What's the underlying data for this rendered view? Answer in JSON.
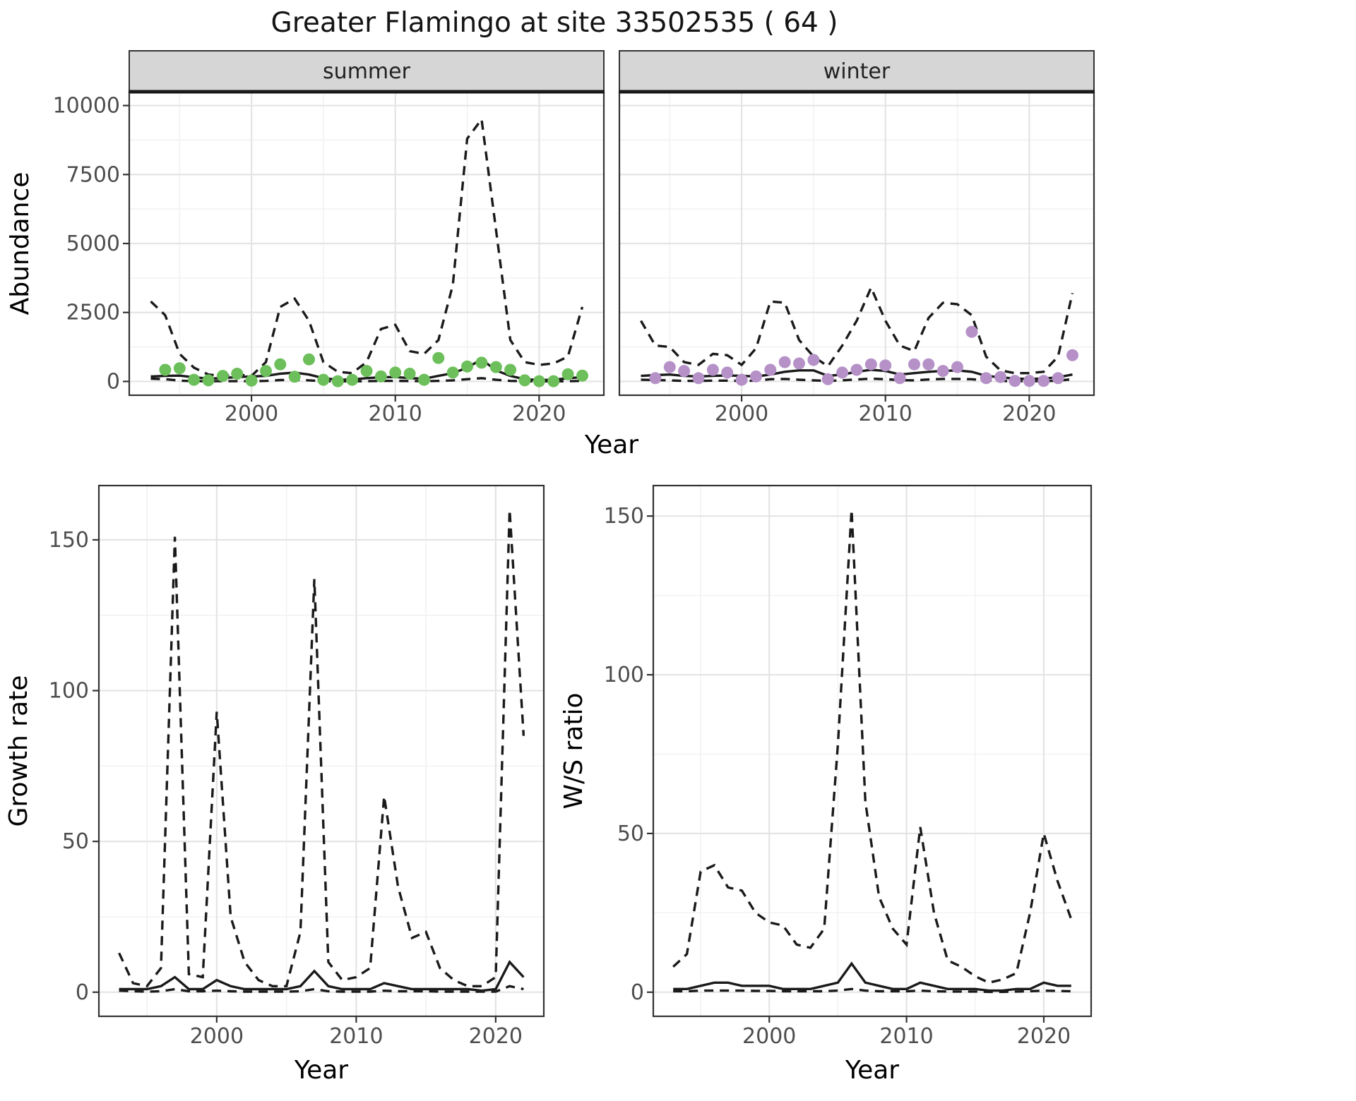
{
  "title": "Greater Flamingo at site 33502535 ( 64 )",
  "colors": {
    "summer_point": "#6cbf5a",
    "winter_point": "#b591c8",
    "line": "#1a1a1a",
    "strip_bg": "#d6d6d6",
    "panel_border": "#333333",
    "grid_major": "#e4e4e4",
    "grid_minor": "#f2f2f2",
    "tick_text": "#4d4d4d",
    "axis_title": "#000000"
  },
  "chart_data": [
    {
      "id": "abundance",
      "type": "line",
      "title": "Greater Flamingo at site 33502535 ( 64 )",
      "xlabel": "Year",
      "ylabel": "Abundance",
      "xlim": [
        1993,
        2023
      ],
      "ylim": [
        0,
        10000
      ],
      "xticks": [
        2000,
        2010,
        2020
      ],
      "yticks": [
        0,
        2500,
        5000,
        7500,
        10000
      ],
      "x_minor": [
        1995,
        2005,
        2015
      ],
      "y_minor": [
        1250,
        3750,
        6250,
        8750
      ],
      "legend": "none",
      "grid": "on",
      "facets": [
        {
          "label": "summer",
          "point_color": "#6cbf5a",
          "years": [
            1993,
            1994,
            1995,
            1996,
            1997,
            1998,
            1999,
            2000,
            2001,
            2002,
            2003,
            2004,
            2005,
            2006,
            2007,
            2008,
            2009,
            2010,
            2011,
            2012,
            2013,
            2014,
            2015,
            2016,
            2017,
            2018,
            2019,
            2020,
            2021,
            2022,
            2023
          ],
          "series": [
            {
              "name": "upper_ci",
              "style": "dashed",
              "values": [
                2900,
                2400,
                1000,
                500,
                250,
                200,
                250,
                200,
                700,
                2700,
                3000,
                2200,
                700,
                350,
                300,
                700,
                1900,
                2050,
                1100,
                1000,
                1500,
                3500,
                8800,
                9500,
                5500,
                1500,
                700,
                600,
                650,
                900,
                2700
              ]
            },
            {
              "name": "fit",
              "style": "solid",
              "values": [
                180,
                200,
                210,
                150,
                100,
                120,
                160,
                180,
                200,
                280,
                320,
                250,
                120,
                60,
                70,
                120,
                150,
                160,
                120,
                100,
                200,
                300,
                500,
                800,
                400,
                200,
                80,
                50,
                60,
                120,
                150
              ]
            },
            {
              "name": "lower_ci",
              "style": "dashed",
              "values": [
                100,
                80,
                30,
                10,
                10,
                10,
                10,
                10,
                20,
                50,
                60,
                40,
                10,
                5,
                5,
                10,
                20,
                20,
                15,
                10,
                20,
                40,
                80,
                120,
                60,
                20,
                5,
                5,
                5,
                10,
                20
              ]
            }
          ],
          "points": {
            "name": "observed_abundance",
            "x": [
              1994,
              1995,
              1996,
              1997,
              1998,
              1999,
              2000,
              2001,
              2002,
              2003,
              2004,
              2005,
              2006,
              2007,
              2008,
              2009,
              2010,
              2011,
              2012,
              2013,
              2014,
              2015,
              2016,
              2017,
              2018,
              2019,
              2020,
              2021,
              2022,
              2023
            ],
            "y": [
              420,
              480,
              60,
              40,
              200,
              280,
              30,
              380,
              620,
              170,
              800,
              60,
              10,
              60,
              380,
              180,
              320,
              280,
              60,
              850,
              320,
              540,
              680,
              520,
              420,
              40,
              10,
              10,
              260,
              210
            ]
          }
        },
        {
          "label": "winter",
          "point_color": "#b591c8",
          "years": [
            1993,
            1994,
            1995,
            1996,
            1997,
            1998,
            1999,
            2000,
            2001,
            2002,
            2003,
            2004,
            2005,
            2006,
            2007,
            2008,
            2009,
            2010,
            2011,
            2012,
            2013,
            2014,
            2015,
            2016,
            2017,
            2018,
            2019,
            2020,
            2021,
            2022,
            2023
          ],
          "series": [
            {
              "name": "upper_ci",
              "style": "dashed",
              "values": [
                2200,
                1300,
                1250,
                700,
                600,
                1000,
                950,
                600,
                1200,
                2900,
                2850,
                1500,
                900,
                550,
                1300,
                2200,
                3400,
                2200,
                1300,
                1100,
                2300,
                2850,
                2800,
                2400,
                900,
                400,
                300,
                300,
                350,
                900,
                3200
              ]
            },
            {
              "name": "fit",
              "style": "solid",
              "values": [
                200,
                230,
                250,
                200,
                180,
                200,
                220,
                200,
                180,
                250,
                350,
                400,
                400,
                200,
                250,
                350,
                420,
                380,
                250,
                300,
                350,
                380,
                400,
                350,
                200,
                150,
                100,
                90,
                100,
                150,
                250
              ]
            },
            {
              "name": "lower_ci",
              "style": "dashed",
              "values": [
                60,
                50,
                40,
                20,
                20,
                30,
                30,
                20,
                30,
                80,
                90,
                60,
                40,
                20,
                40,
                70,
                100,
                80,
                50,
                40,
                70,
                90,
                90,
                80,
                40,
                20,
                10,
                10,
                10,
                30,
                80
              ]
            }
          ],
          "points": {
            "name": "observed_abundance",
            "x": [
              1994,
              1995,
              1996,
              1997,
              1998,
              1999,
              2000,
              2001,
              2002,
              2003,
              2004,
              2005,
              2006,
              2007,
              2008,
              2009,
              2010,
              2011,
              2012,
              2013,
              2014,
              2015,
              2016,
              2017,
              2018,
              2019,
              2020,
              2021,
              2022,
              2023
            ],
            "y": [
              120,
              520,
              380,
              120,
              420,
              320,
              60,
              180,
              420,
              700,
              650,
              780,
              80,
              320,
              420,
              620,
              580,
              120,
              620,
              620,
              380,
              520,
              1800,
              120,
              160,
              20,
              20,
              20,
              120,
              950
            ]
          }
        }
      ]
    },
    {
      "id": "growth_rate",
      "type": "line",
      "xlabel": "Year",
      "ylabel": "Growth rate",
      "xlim": [
        1993,
        2022
      ],
      "ylim": [
        0,
        160
      ],
      "xticks": [
        2000,
        2010,
        2020
      ],
      "yticks": [
        0,
        50,
        100,
        150
      ],
      "x_minor": [
        1995,
        2005,
        2015
      ],
      "y_minor": [
        25,
        75,
        125
      ],
      "legend": "none",
      "grid": "on",
      "years": [
        1993,
        1994,
        1995,
        1996,
        1997,
        1998,
        1999,
        2000,
        2001,
        2002,
        2003,
        2004,
        2005,
        2006,
        2007,
        2008,
        2009,
        2010,
        2011,
        2012,
        2013,
        2014,
        2015,
        2016,
        2017,
        2018,
        2019,
        2020,
        2021,
        2022
      ],
      "series": [
        {
          "name": "upper_ci",
          "style": "dashed",
          "values": [
            13,
            3,
            2,
            8,
            151,
            6,
            5,
            93,
            25,
            10,
            4,
            2,
            2,
            20,
            137,
            10,
            4,
            5,
            8,
            65,
            35,
            18,
            20,
            8,
            4,
            2,
            2,
            5,
            160,
            85
          ]
        },
        {
          "name": "fit",
          "style": "solid",
          "values": [
            1,
            1,
            1,
            2,
            5,
            1,
            1,
            4,
            2,
            1,
            1,
            1,
            1,
            2,
            7,
            2,
            1,
            1,
            1,
            3,
            2,
            1,
            1,
            1,
            1,
            1,
            0.5,
            1,
            10,
            5
          ]
        },
        {
          "name": "lower_ci",
          "style": "dashed",
          "values": [
            0.5,
            0.3,
            0.2,
            0.3,
            1,
            0.3,
            0.3,
            0.5,
            0.3,
            0.2,
            0.2,
            0.2,
            0.2,
            0.3,
            1,
            0.3,
            0.2,
            0.2,
            0.2,
            0.5,
            0.3,
            0.3,
            0.3,
            0.2,
            0.2,
            0.2,
            0.2,
            0.2,
            2,
            1
          ]
        }
      ]
    },
    {
      "id": "ws_ratio",
      "type": "line",
      "xlabel": "Year",
      "ylabel": "W/S ratio",
      "xlim": [
        1993,
        2022
      ],
      "ylim": [
        0,
        152
      ],
      "xticks": [
        2000,
        2010,
        2020
      ],
      "yticks": [
        0,
        50,
        100,
        150
      ],
      "x_minor": [
        1995,
        2005,
        2015
      ],
      "y_minor": [
        25,
        75,
        125
      ],
      "legend": "none",
      "grid": "on",
      "years": [
        1993,
        1994,
        1995,
        1996,
        1997,
        1998,
        1999,
        2000,
        2001,
        2002,
        2003,
        2004,
        2005,
        2006,
        2007,
        2008,
        2009,
        2010,
        2011,
        2012,
        2013,
        2014,
        2015,
        2016,
        2017,
        2018,
        2019,
        2020,
        2021,
        2022
      ],
      "series": [
        {
          "name": "upper_ci",
          "style": "dashed",
          "values": [
            8,
            12,
            38,
            40,
            33,
            32,
            25,
            22,
            21,
            15,
            14,
            20,
            78,
            152,
            60,
            30,
            20,
            15,
            52,
            25,
            10,
            8,
            5,
            3,
            4,
            6,
            25,
            50,
            35,
            23
          ]
        },
        {
          "name": "fit",
          "style": "solid",
          "values": [
            1,
            1,
            2,
            3,
            3,
            2,
            2,
            2,
            1,
            1,
            1,
            2,
            3,
            9,
            3,
            2,
            1,
            1,
            3,
            2,
            1,
            1,
            1,
            0.5,
            0.5,
            1,
            1,
            3,
            2,
            2
          ]
        },
        {
          "name": "lower_ci",
          "style": "dashed",
          "values": [
            0.3,
            0.3,
            0.5,
            0.5,
            0.5,
            0.5,
            0.4,
            0.4,
            0.3,
            0.3,
            0.3,
            0.3,
            0.5,
            1,
            0.5,
            0.3,
            0.3,
            0.3,
            0.5,
            0.3,
            0.2,
            0.2,
            0.2,
            0.1,
            0.1,
            0.2,
            0.3,
            0.5,
            0.4,
            0.3
          ]
        }
      ]
    }
  ]
}
